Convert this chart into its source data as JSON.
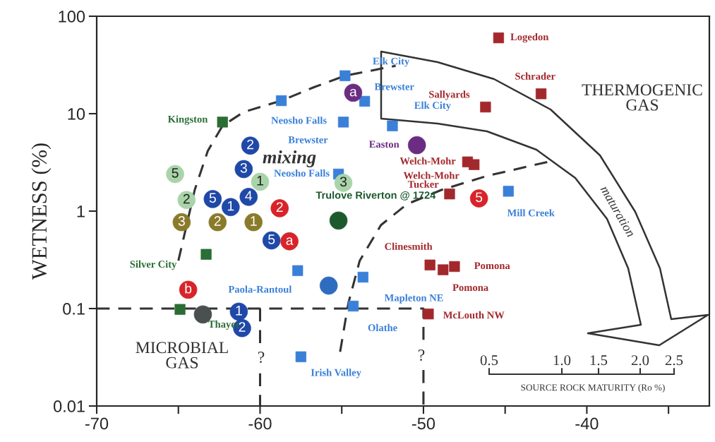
{
  "chart_data": {
    "type": "scatter",
    "ylabel": "WETNESS (%)",
    "log": "y",
    "xlim": [
      -70,
      -32.5
    ],
    "ylim": [
      0.01,
      100
    ],
    "xticks": [
      -70,
      {
        "value": -65,
        "label": null
      },
      -60,
      {
        "value": -55,
        "label": null
      },
      -50,
      {
        "value": -45,
        "label": null
      },
      -40,
      {
        "value": -35,
        "label": null
      }
    ],
    "yticks": [
      0.01,
      0.1,
      1,
      10,
      100
    ],
    "grid": false,
    "legend": false,
    "series": [
      {
        "marker": "square",
        "color": "#a3282c",
        "x": [
          -45.4,
          -42.8,
          -46.2,
          -47.3,
          -46.9,
          -48.4,
          -49.6,
          -48.8,
          -48.1,
          -49.7
        ],
        "values": [
          60,
          16,
          11.7,
          3.2,
          3.0,
          1.5,
          0.28,
          0.25,
          0.27,
          0.088
        ]
      },
      {
        "marker": "square",
        "color": "#3a80d8",
        "x": [
          -54.8,
          -53.6,
          -58.7,
          -54.9,
          -51.9,
          -55.2,
          -44.8,
          -57.7,
          -53.7,
          -54.3,
          -57.5
        ],
        "values": [
          24.5,
          13.4,
          13.6,
          8.2,
          7.5,
          2.4,
          1.6,
          0.245,
          0.21,
          0.106,
          0.032
        ]
      },
      {
        "marker": "square",
        "color": "#2a6e35",
        "x": [
          -62.3,
          -63.3,
          -64.9
        ],
        "values": [
          8.2,
          0.36,
          0.098
        ]
      },
      {
        "marker": "circle",
        "color": "#1f48a8",
        "x": [
          -60.6,
          -61.0,
          -60.7,
          -61.8,
          -62.9,
          -59.3,
          -61.3,
          -61.1
        ],
        "values": [
          4.7,
          2.7,
          1.4,
          1.1,
          1.33,
          0.5,
          0.093,
          0.063
        ]
      },
      {
        "marker": "circle",
        "color": "#a9d4a9",
        "x": [
          -65.2,
          -64.5,
          -60.0,
          -54.9
        ],
        "values": [
          2.4,
          1.3,
          2.0,
          1.95
        ]
      },
      {
        "marker": "circle",
        "color": "#8a7b2b",
        "x": [
          -64.8,
          -62.6,
          -60.4
        ],
        "values": [
          0.77,
          0.77,
          0.77
        ]
      },
      {
        "marker": "circle",
        "color": "#6b2d82",
        "x": [
          -54.3,
          -50.4
        ],
        "values": [
          16.4,
          4.75
        ]
      },
      {
        "marker": "circle",
        "color": "#d8232a",
        "x": [
          -58.8,
          -58.2,
          -64.4,
          -46.6
        ],
        "values": [
          1.07,
          0.49,
          0.156,
          1.35
        ]
      },
      {
        "marker": "circle",
        "color": "#1c5a2e",
        "x": [
          -55.2
        ],
        "values": [
          0.8
        ]
      },
      {
        "marker": "circle",
        "color": "#2e6cc0",
        "x": [
          -55.8
        ],
        "values": [
          0.172
        ]
      },
      {
        "marker": "circle",
        "color": "#4a4f4f",
        "x": [
          -63.5
        ],
        "values": [
          0.087
        ]
      },
      {
        "type": "line",
        "line_style": "dashed",
        "marker": "none",
        "color": "#333333",
        "x": [
          -65.0,
          -64.0,
          -63.2,
          -62.3,
          -61.0,
          -58.7,
          -56.7,
          -54.8,
          -51.7
        ],
        "values": [
          0.31,
          1.65,
          4.15,
          7.5,
          10.4,
          13.6,
          18.7,
          24.5,
          31
        ]
      },
      {
        "type": "line",
        "line_style": "dashed",
        "marker": "none",
        "color": "#333333",
        "x": [
          -70,
          -50,
          -50
        ],
        "values": [
          0.1,
          0.1,
          0.01
        ]
      },
      {
        "type": "line",
        "line_style": "dashed",
        "marker": "none",
        "color": "#333333",
        "x": [
          -60,
          -60
        ],
        "values": [
          0.1,
          0.01
        ]
      },
      {
        "type": "line",
        "line_style": "dashed",
        "marker": "none",
        "color": "#333333",
        "x": [
          -55.1,
          -54.6,
          -53.9,
          -52.6,
          -51.0,
          -48.9,
          -46.1,
          -42.4
        ],
        "values": [
          0.036,
          0.113,
          0.31,
          0.72,
          1.18,
          1.65,
          2.3,
          3.2
        ]
      }
    ],
    "annotations": [
      "THERMOGENIC\nGAS",
      "MICROBIAL\nGAS",
      "mixing",
      "maturation",
      "?",
      "?",
      "0.5",
      "1.0",
      "1.5",
      "2.0",
      "2.5",
      "SOURCE ROCK MATURITY (Ro %)",
      {
        "text": "Logedon",
        "x": -45.4,
        "y": 60
      },
      {
        "text": "Schrader",
        "x": -42.8,
        "y": 16
      },
      {
        "text": "Sallyards",
        "x": -46.2,
        "y": 11.7
      },
      {
        "text": "Welch-Mohr",
        "x": -47.3,
        "y": 3.2
      },
      {
        "text": "Welch-Mohr",
        "x": -46.9,
        "y": 3.0
      },
      {
        "text": "Tucker",
        "x": -48.4,
        "y": 1.5
      },
      {
        "text": "Clinesmith",
        "x": -49.6,
        "y": 0.28
      },
      {
        "text": "Pomona",
        "x": -48.8,
        "y": 0.25
      },
      {
        "text": "Pomona",
        "x": -48.1,
        "y": 0.27
      },
      {
        "text": "McLouth NW",
        "x": -49.7,
        "y": 0.088
      },
      {
        "text": "Elk City",
        "x": -54.8,
        "y": 24.5
      },
      {
        "text": "Brewster",
        "x": -53.6,
        "y": 13.4
      },
      {
        "text": "Neosho Falls",
        "x": -58.7,
        "y": 13.6
      },
      {
        "text": "Brewster",
        "x": -54.9,
        "y": 8.2
      },
      {
        "text": "Elk City",
        "x": -51.9,
        "y": 7.5
      },
      {
        "text": "Neosho Falls",
        "x": -55.2,
        "y": 2.4
      },
      {
        "text": "Mill Creek",
        "x": -44.8,
        "y": 1.6
      },
      {
        "text": "Paola-Rantoul",
        "x": -57.7,
        "y": 0.245
      },
      {
        "text": "Mapleton NE",
        "x": -53.7,
        "y": 0.21
      },
      {
        "text": "Olathe",
        "x": -54.3,
        "y": 0.106
      },
      {
        "text": "Irish Valley",
        "x": -57.5,
        "y": 0.032
      },
      {
        "text": "Kingston",
        "x": -62.3,
        "y": 8.2
      },
      {
        "text": "Silver City",
        "x": -63.3,
        "y": 0.36
      },
      {
        "text": "Thayer",
        "x": -64.9,
        "y": 0.098
      },
      {
        "text": "Easton",
        "x": -50.4,
        "y": 4.75
      },
      {
        "text": "Trulove Riverton @ 1724",
        "x": -55.2,
        "y": 0.8
      },
      {
        "text": "2",
        "x": -60.6,
        "y": 4.7
      },
      {
        "text": "3",
        "x": -61.0,
        "y": 2.7
      },
      {
        "text": "4",
        "x": -60.7,
        "y": 1.4
      },
      {
        "text": "1",
        "x": -61.8,
        "y": 1.1
      },
      {
        "text": "5",
        "x": -62.9,
        "y": 1.33
      },
      {
        "text": "5",
        "x": -59.3,
        "y": 0.5
      },
      {
        "text": "1",
        "x": -61.3,
        "y": 0.093
      },
      {
        "text": "2",
        "x": -61.1,
        "y": 0.063
      },
      {
        "text": "5",
        "x": -65.2,
        "y": 2.4
      },
      {
        "text": "2",
        "x": -64.5,
        "y": 1.3
      },
      {
        "text": "1",
        "x": -60.0,
        "y": 2.0
      },
      {
        "text": "3",
        "x": -54.9,
        "y": 1.95
      },
      {
        "text": "3",
        "x": -64.8,
        "y": 0.77
      },
      {
        "text": "2",
        "x": -62.6,
        "y": 0.77
      },
      {
        "text": "1",
        "x": -60.4,
        "y": 0.77
      },
      {
        "text": "a",
        "x": -54.3,
        "y": 16.4
      },
      {
        "text": "2",
        "x": -58.8,
        "y": 1.07
      },
      {
        "text": "a",
        "x": -58.2,
        "y": 0.49
      },
      {
        "text": "b",
        "x": -64.4,
        "y": 0.156
      },
      {
        "text": "5",
        "x": -46.6,
        "y": 1.35
      }
    ]
  }
}
